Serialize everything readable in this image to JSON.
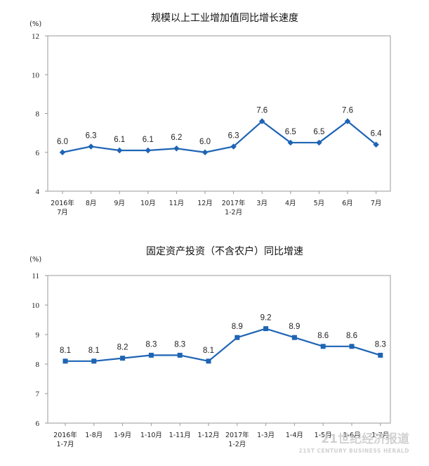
{
  "chart_data": [
    {
      "type": "line",
      "title": "规模以上工业增加值同比增长速度",
      "ylabel": "(%)",
      "ylim": [
        4,
        12
      ],
      "yticks": [
        4,
        6,
        8,
        10,
        12
      ],
      "categories": [
        [
          "2016年",
          "7月"
        ],
        [
          "8月"
        ],
        [
          "9月"
        ],
        [
          "10月"
        ],
        [
          "11月"
        ],
        [
          "12月"
        ],
        [
          "2017年",
          "1-2月"
        ],
        [
          "3月"
        ],
        [
          "4月"
        ],
        [
          "5月"
        ],
        [
          "6月"
        ],
        [
          "7月"
        ]
      ],
      "series": [
        {
          "name": "规模以上工业增加值同比增长速度",
          "values": [
            6.0,
            6.3,
            6.1,
            6.1,
            6.2,
            6.0,
            6.3,
            7.6,
            6.5,
            6.5,
            7.6,
            6.4
          ]
        }
      ],
      "color": "#1e64b4",
      "marker": "diamond",
      "grid": false
    },
    {
      "type": "line",
      "title": "固定资产投资（不含农户）同比增速",
      "ylabel": "(%)",
      "ylim": [
        6,
        11
      ],
      "yticks": [
        6,
        7,
        8,
        9,
        10,
        11
      ],
      "categories": [
        [
          "2016年",
          "1-7月"
        ],
        [
          "1-8月"
        ],
        [
          "1-9月"
        ],
        [
          "1-10月"
        ],
        [
          "1-11月"
        ],
        [
          "1-12月"
        ],
        [
          "2017年",
          "1-2月"
        ],
        [
          "1-3月"
        ],
        [
          "1-4月"
        ],
        [
          "1-5月"
        ],
        [
          "1-6月"
        ],
        [
          "1-7月"
        ]
      ],
      "series": [
        {
          "name": "固定资产投资（不含农户）同比增速",
          "values": [
            8.1,
            8.1,
            8.2,
            8.3,
            8.3,
            8.1,
            8.9,
            9.2,
            8.9,
            8.6,
            8.6,
            8.3
          ]
        }
      ],
      "color": "#1e64b4",
      "marker": "square",
      "grid": false
    }
  ],
  "watermark": {
    "main": "21世纪经济报道",
    "sub": "21ST CENTURY BUSINESS HERALD"
  }
}
